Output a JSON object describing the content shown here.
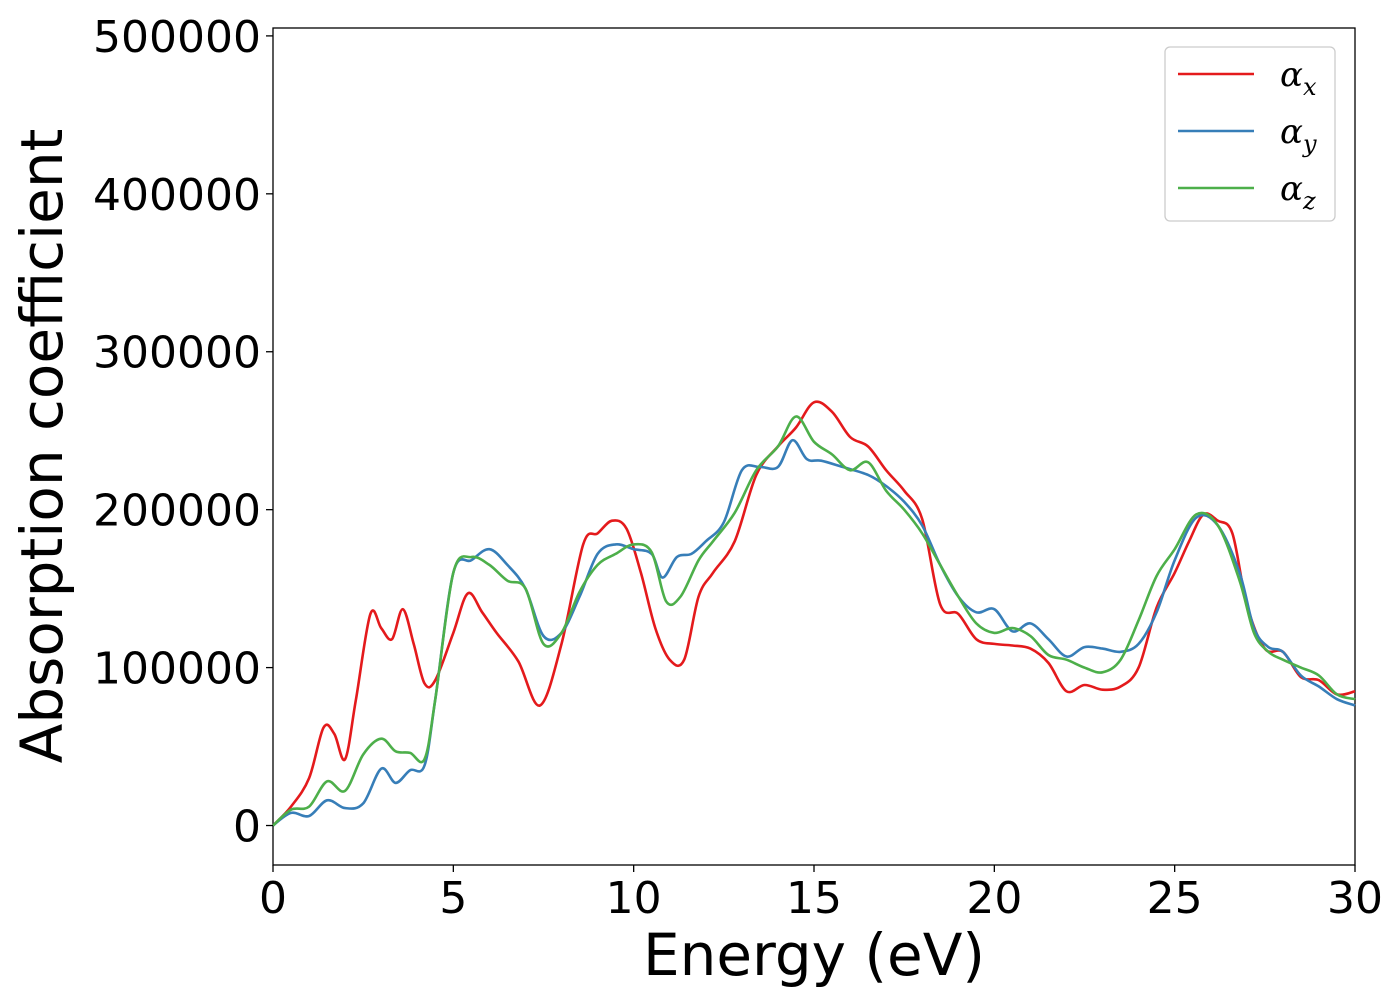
{
  "chart_data": {
    "type": "line",
    "title": "",
    "xlabel": "Energy (eV)",
    "ylabel": "Absorption coefficient",
    "xlim": [
      0,
      30
    ],
    "ylim": [
      -25000,
      505000
    ],
    "x_ticks": [
      0,
      5,
      10,
      15,
      20,
      25,
      30
    ],
    "y_ticks": [
      0,
      100000,
      200000,
      300000,
      400000,
      500000
    ],
    "x_tick_labels": [
      "0",
      "5",
      "10",
      "15",
      "20",
      "25",
      "30"
    ],
    "y_tick_labels": [
      "0",
      "100000",
      "200000",
      "300000",
      "400000",
      "500000"
    ],
    "grid": false,
    "legend_position": "top-right",
    "series": [
      {
        "name": "αx",
        "name_base": "α",
        "name_sub": "x",
        "color": "#e41a1c",
        "x": [
          0,
          0.5,
          1.0,
          1.4,
          1.7,
          2.0,
          2.3,
          2.7,
          3.0,
          3.3,
          3.6,
          3.9,
          4.2,
          4.5,
          5.0,
          5.4,
          5.8,
          6.2,
          6.8,
          7.4,
          8.0,
          8.6,
          9.0,
          9.4,
          9.8,
          10.2,
          10.6,
          11.0,
          11.4,
          11.8,
          12.2,
          12.8,
          13.4,
          14.0,
          14.5,
          15.0,
          15.5,
          16.0,
          16.5,
          17.0,
          17.5,
          18.0,
          18.5,
          19.0,
          19.5,
          20.0,
          20.5,
          21.0,
          21.5,
          22.0,
          22.5,
          23.0,
          23.5,
          24.0,
          24.5,
          25.0,
          25.4,
          25.8,
          26.2,
          26.6,
          27.0,
          27.5,
          28.0,
          28.5,
          29.0,
          29.5,
          30.0
        ],
        "y": [
          0,
          12000,
          30000,
          62000,
          58000,
          42000,
          80000,
          134000,
          125000,
          118000,
          137000,
          115000,
          90000,
          92000,
          122000,
          147000,
          135000,
          122000,
          104000,
          76000,
          115000,
          178000,
          185000,
          193000,
          188000,
          160000,
          125000,
          105000,
          105000,
          145000,
          160000,
          180000,
          222000,
          240000,
          252000,
          268000,
          262000,
          246000,
          240000,
          225000,
          212000,
          194000,
          140000,
          134000,
          118000,
          115000,
          114000,
          112000,
          103000,
          85000,
          89000,
          86000,
          88000,
          100000,
          138000,
          160000,
          180000,
          197000,
          193000,
          185000,
          140000,
          112000,
          110000,
          94000,
          92000,
          83000,
          85000
        ]
      },
      {
        "name": "αy",
        "name_base": "α",
        "name_sub": "y",
        "color": "#377eb8",
        "x": [
          0,
          0.5,
          1.0,
          1.5,
          2.0,
          2.5,
          3.0,
          3.4,
          3.8,
          4.2,
          4.5,
          5.0,
          5.5,
          6.0,
          6.5,
          7.0,
          7.5,
          8.0,
          8.5,
          9.0,
          9.5,
          10.0,
          10.5,
          10.8,
          11.2,
          11.6,
          12.0,
          12.5,
          13.0,
          13.5,
          14.0,
          14.4,
          14.8,
          15.2,
          15.8,
          16.5,
          17.0,
          17.5,
          18.0,
          18.5,
          19.0,
          19.5,
          20.0,
          20.5,
          21.0,
          21.5,
          22.0,
          22.5,
          23.0,
          23.5,
          24.0,
          24.5,
          25.0,
          25.6,
          26.2,
          26.8,
          27.2,
          27.6,
          28.0,
          28.5,
          29.0,
          29.5,
          30.0
        ],
        "y": [
          0,
          8000,
          6000,
          16000,
          11000,
          14000,
          36000,
          27000,
          35000,
          38000,
          80000,
          160000,
          168000,
          175000,
          165000,
          150000,
          120000,
          122000,
          145000,
          172000,
          178000,
          175000,
          172000,
          157000,
          170000,
          172000,
          180000,
          192000,
          225000,
          227000,
          227000,
          244000,
          232000,
          231000,
          227000,
          222000,
          215000,
          205000,
          190000,
          165000,
          145000,
          135000,
          137000,
          123000,
          128000,
          118000,
          107000,
          113000,
          112000,
          110000,
          115000,
          135000,
          168000,
          195000,
          190000,
          160000,
          125000,
          113000,
          110000,
          95000,
          88000,
          80000,
          76000
        ]
      },
      {
        "name": "αz",
        "name_base": "α",
        "name_sub": "z",
        "color": "#4daf4a",
        "x": [
          0,
          0.5,
          1.0,
          1.5,
          2.0,
          2.5,
          3.0,
          3.4,
          3.8,
          4.2,
          4.5,
          5.0,
          5.5,
          6.0,
          6.5,
          7.0,
          7.5,
          8.0,
          8.5,
          9.0,
          9.5,
          10.0,
          10.5,
          10.9,
          11.3,
          11.8,
          12.2,
          12.8,
          13.4,
          14.0,
          14.5,
          15.0,
          15.5,
          16.0,
          16.5,
          17.0,
          17.5,
          18.0,
          18.5,
          19.0,
          19.5,
          20.0,
          20.5,
          21.0,
          21.5,
          22.0,
          22.5,
          23.0,
          23.5,
          24.0,
          24.5,
          25.0,
          25.6,
          26.2,
          26.8,
          27.2,
          27.6,
          28.0,
          28.5,
          29.0,
          29.5,
          30.0
        ],
        "y": [
          0,
          10000,
          12000,
          28000,
          22000,
          45000,
          55000,
          47000,
          46000,
          42000,
          80000,
          160000,
          170000,
          165000,
          155000,
          150000,
          115000,
          122000,
          148000,
          165000,
          172000,
          178000,
          173000,
          142000,
          145000,
          168000,
          180000,
          198000,
          225000,
          240000,
          259000,
          243000,
          235000,
          225000,
          230000,
          212000,
          200000,
          185000,
          165000,
          145000,
          128000,
          122000,
          125000,
          120000,
          108000,
          105000,
          100000,
          97000,
          105000,
          130000,
          158000,
          175000,
          197000,
          190000,
          155000,
          122000,
          110000,
          105000,
          100000,
          95000,
          83000,
          80000
        ]
      }
    ]
  }
}
